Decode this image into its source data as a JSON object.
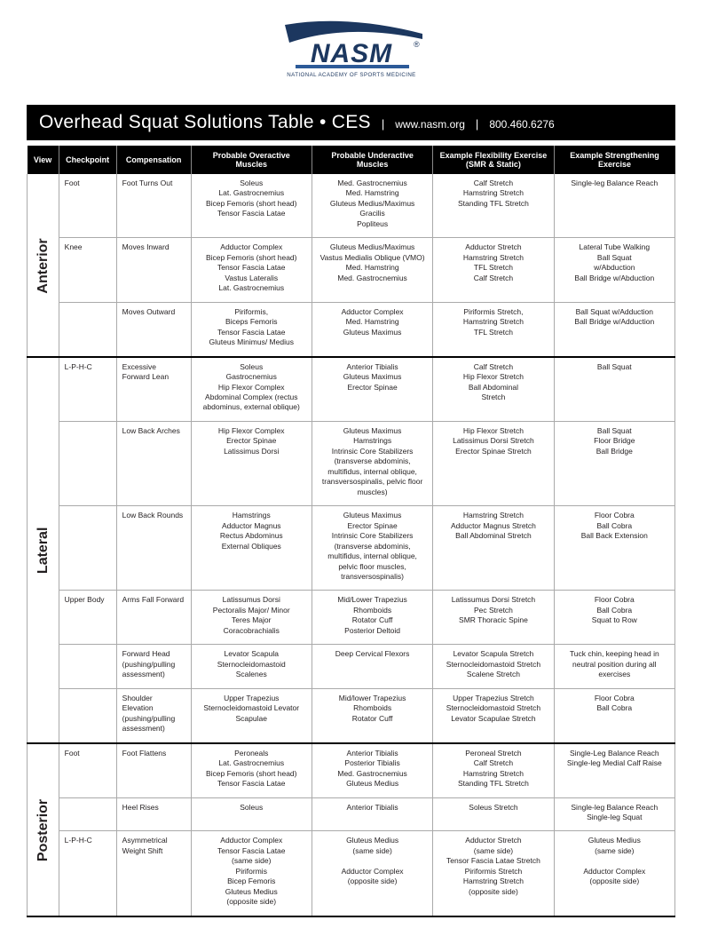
{
  "logo": {
    "brand": "NASM",
    "tagline": "NATIONAL ACADEMY OF SPORTS MEDICINE",
    "colors": {
      "swoosh": "#1c375f",
      "bar": "#2c5a98",
      "text": "#1c375f"
    }
  },
  "titleBar": {
    "main": "Overhead Squat Solutions Table • CES",
    "url": "www.nasm.org",
    "phone": "800.460.6276",
    "bg": "#000000",
    "fg": "#ffffff"
  },
  "headers": [
    "View",
    "Checkpoint",
    "Compensation",
    "Probable Overactive\nMuscles",
    "Probable Underactive\nMuscles",
    "Example Flexibility Exercise\n(SMR & Static)",
    "Example Strengthening\nExercise"
  ],
  "sections": [
    {
      "view": "Anterior",
      "rows": [
        {
          "checkpoint": "Foot",
          "compensation": "Foot Turns Out",
          "overactive": "Soleus\nLat. Gastrocnemius\nBicep Femoris (short head)\nTensor Fascia Latae",
          "underactive": "Med. Gastrocnemius\nMed. Hamstring\nGluteus Medius/Maximus\nGracilis\nPopliteus",
          "flex": "Calf Stretch\nHamstring Stretch\nStanding TFL Stretch",
          "strength": "Single-leg Balance Reach"
        },
        {
          "checkpoint": "Knee",
          "compensation": "Moves Inward",
          "overactive": "Adductor Complex\nBicep Femoris (short head)\nTensor Fascia Latae\nVastus Lateralis\nLat. Gastrocnemius",
          "underactive": "Gluteus Medius/Maximus\nVastus Medialis Oblique (VMO)\nMed. Hamstring\nMed. Gastrocnemius",
          "flex": "Adductor Stretch\nHamstring Stretch\nTFL Stretch\nCalf Stretch",
          "strength": "Lateral Tube Walking\nBall Squat\nw/Abduction\nBall Bridge w/Abduction"
        },
        {
          "checkpoint": "",
          "compensation": "Moves Outward",
          "overactive": "Piriformis,\nBiceps Femoris\nTensor Fascia Latae\nGluteus Minimus/ Medius",
          "underactive": "Adductor Complex\nMed. Hamstring\nGluteus Maximus",
          "flex": "Piriformis Stretch,\nHamstring Stretch\nTFL Stretch",
          "strength": "Ball Squat w/Adduction\nBall Bridge w/Adduction"
        }
      ]
    },
    {
      "view": "Lateral",
      "rows": [
        {
          "checkpoint": "L-P-H-C",
          "compensation": "Excessive\nForward Lean",
          "overactive": "Soleus\nGastrocnemius\nHip Flexor Complex\nAbdominal Complex (rectus\nabdominus, external oblique)",
          "underactive": "Anterior Tibialis\nGluteus Maximus\nErector Spinae",
          "flex": "Calf Stretch\nHip Flexor Stretch\nBall Abdominal\nStretch",
          "strength": "Ball Squat"
        },
        {
          "checkpoint": "",
          "compensation": "Low Back Arches",
          "overactive": "Hip Flexor Complex\nErector Spinae\nLatissimus Dorsi",
          "underactive": "Gluteus Maximus\nHamstrings\nIntrinsic Core Stabilizers\n(transverse abdominis,\nmultifidus, internal oblique,\ntransversospinalis, pelvic floor\nmuscles)",
          "flex": "Hip Flexor Stretch\nLatissimus Dorsi Stretch\nErector Spinae Stretch",
          "strength": "Ball Squat\nFloor Bridge\nBall Bridge"
        },
        {
          "checkpoint": "",
          "compensation": "Low Back Rounds",
          "overactive": "Hamstrings\nAdductor Magnus\nRectus Abdominus\nExternal Obliques",
          "underactive": "Gluteus Maximus\nErector Spinae\nIntrinsic Core Stabilizers\n(transverse abdominis,\nmultifidus, internal oblique,\npelvic floor muscles,\ntransversospinalis)",
          "flex": "Hamstring Stretch\nAdductor Magnus Stretch\nBall Abdominal Stretch",
          "strength": "Floor Cobra\nBall Cobra\nBall Back Extension"
        },
        {
          "checkpoint": "Upper Body",
          "compensation": "Arms Fall Forward",
          "overactive": "Latissumus Dorsi\nPectoralis Major/ Minor\nTeres Major\nCoracobrachialis",
          "underactive": "Mid/Lower Trapezius\nRhomboids\nRotator Cuff\nPosterior Deltoid",
          "flex": "Latissumus Dorsi Stretch\nPec Stretch\nSMR Thoracic Spine",
          "strength": "Floor Cobra\nBall Cobra\nSquat to Row"
        },
        {
          "checkpoint": "",
          "compensation": "Forward Head\n(pushing/pulling\nassessment)",
          "overactive": "Levator Scapula\nSternocleidomastoid\nScalenes",
          "underactive": "Deep Cervical Flexors",
          "flex": "Levator Scapula Stretch\nSternocleidomastoid Stretch\nScalene Stretch",
          "strength": "Tuck chin, keeping head in\nneutral position during all\nexercises"
        },
        {
          "checkpoint": "",
          "compensation": "Shoulder\nElevation\n(pushing/pulling\nassessment)",
          "overactive": "Upper Trapezius\nSternocleidomastoid Levator\nScapulae",
          "underactive": "Mid/lower Trapezius\nRhomboids\nRotator Cuff",
          "flex": "Upper Trapezius Stretch\nSternocleidomastoid Stretch\nLevator Scapulae Stretch",
          "strength": "Floor Cobra\nBall Cobra"
        }
      ]
    },
    {
      "view": "Posterior",
      "rows": [
        {
          "checkpoint": "Foot",
          "compensation": "Foot Flattens",
          "overactive": "Peroneals\nLat. Gastrocnemius\nBicep Femoris (short head)\nTensor Fascia Latae",
          "underactive": "Anterior Tibialis\nPosterior Tibialis\nMed. Gastrocnemius\nGluteus Medius",
          "flex": "Peroneal Stretch\nCalf Stretch\nHamstring Stretch\nStanding TFL Stretch",
          "strength": "Single-Leg Balance Reach\nSingle-leg Medial Calf Raise"
        },
        {
          "checkpoint": "",
          "compensation": "Heel Rises",
          "overactive": "Soleus",
          "underactive": "Anterior Tibialis",
          "flex": "Soleus Stretch",
          "strength": "Single-leg Balance Reach\nSingle-leg Squat"
        },
        {
          "checkpoint": "L-P-H-C",
          "compensation": "Asymmetrical\nWeight Shift",
          "overactive": "Adductor Complex\nTensor Fascia Latae\n(same side)\nPiriformis\nBicep Femoris\nGluteus Medius\n(opposite side)",
          "underactive": "Gluteus Medius\n(same side)\n\nAdductor Complex\n(opposite side)",
          "flex": "Adductor Stretch\n(same side)\nTensor Fascia Latae Stretch\nPiriformis Stretch\nHamstring Stretch\n(opposite side)",
          "strength": "Gluteus Medius\n(same side)\n\nAdductor Complex\n(opposite side)"
        }
      ]
    }
  ]
}
